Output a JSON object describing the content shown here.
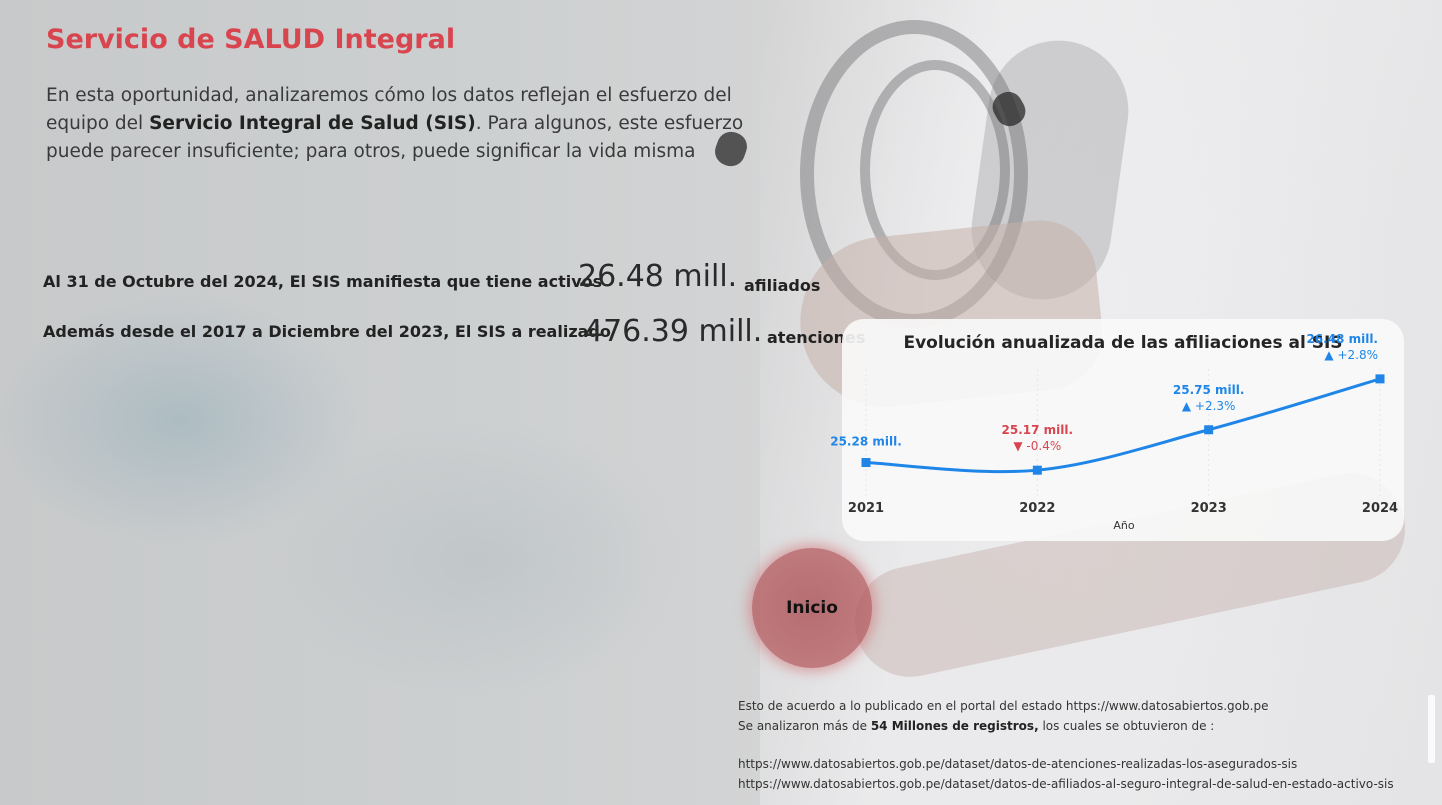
{
  "header": {
    "title": "Servicio de SALUD Integral",
    "intro_part1": "En esta oportunidad, analizaremos cómo los datos reflejan el esfuerzo del equipo del ",
    "intro_bold": "Servicio Integral de Salud (SIS)",
    "intro_part2": ". Para algunos, este esfuerzo puede parecer insuficiente; para otros, puede significar la vida misma"
  },
  "kpis": [
    {
      "label": "Al 31 de Octubre del 2024, El SIS manifiesta que tiene activos",
      "value": "26.48 mill.",
      "unit": "afiliados"
    },
    {
      "label": "Además desde el 2017 a Diciembre del 2023, El SIS a realizado",
      "value": "476.39 mill.",
      "unit": "atenciones"
    }
  ],
  "chart_data": {
    "type": "line",
    "title": "Evolución anualizada de las afiliaciones al SIS",
    "xlabel": "Año",
    "ylabel": "",
    "categories": [
      "2021",
      "2022",
      "2023",
      "2024"
    ],
    "values": [
      25.28,
      25.17,
      25.75,
      26.48
    ],
    "data_labels": [
      "25.28 mill.",
      "25.17 mill.",
      "25.75 mill.",
      "26.48 mill."
    ],
    "changes": [
      null,
      {
        "direction": "down",
        "text": "-0.4%"
      },
      {
        "direction": "up",
        "text": "+2.3%"
      },
      {
        "direction": "up",
        "text": "+2.8%"
      }
    ],
    "ylim": [
      24.9,
      26.55
    ],
    "line_color": "#1f86e8",
    "up_color": "#1f86e8",
    "down_color": "#d8454f",
    "grid": false
  },
  "nav": {
    "home_label": "Inicio"
  },
  "footer": {
    "line1": "Esto de acuerdo a lo publicado en el portal del estado  https://www.datosabiertos.gob.pe",
    "line2_pre": "Se analizaron más de  ",
    "line2_bold": "54 Millones de registros,",
    "line2_post": " los cuales se obtuvieron de :",
    "url1": "https://www.datosabiertos.gob.pe/dataset/datos-de-atenciones-realizadas-los-asegurados-sis",
    "url2": "https://www.datosabiertos.gob.pe/dataset/datos-de-afiliados-al-seguro-integral-de-salud-en-estado-activo-sis"
  },
  "colors": {
    "title": "#d8454f",
    "home_button": "#b4585c"
  }
}
